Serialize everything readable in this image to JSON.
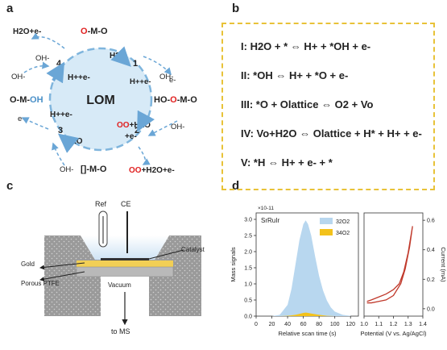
{
  "panel_labels": {
    "a": "a",
    "b": "b",
    "c": "c",
    "d": "d"
  },
  "colors": {
    "lom_circle_fill": "#d7eaf7",
    "lom_circle_stroke": "#7fb5dd",
    "oxygen_red": "#e02020",
    "oxygen_blue": "#4a90c8",
    "equation_box_border": "#e8c238",
    "o32_fill": "#b8d7ef",
    "o34_fill": "#f3c21b",
    "current_line": "#c0392b",
    "gold_layer": "#f2cf55",
    "vacuum_gray": "#9a9a9a"
  },
  "panel_a": {
    "center_label": "LOM",
    "top_species": [
      "O",
      "-M-O"
    ],
    "top_left_product": "H2O+e-",
    "left_species": [
      "O-M-",
      "OH"
    ],
    "right_species": "HO-O-M-O",
    "bottom_species": "[]-M-O",
    "bottom_right_product": [
      "O",
      "O",
      "+H2O+e-"
    ],
    "steps": [
      "1",
      "2",
      "3",
      "4"
    ],
    "step1_labels": [
      "H2O",
      "H++e-"
    ],
    "step2_labels": [
      "O",
      "O+H2O",
      "+e-"
    ],
    "step3_labels": [
      "H++e-",
      "H2O"
    ],
    "step4_labels": [
      "H++e-"
    ],
    "oh_labels": [
      "OH-",
      "OH-",
      "OH-",
      "OH-",
      "OH-"
    ],
    "e_labels": [
      "e-",
      "e-"
    ]
  },
  "panel_b": {
    "equations": [
      {
        "numeral": "I",
        "text": ": H2O + * ⇔ H+ + *OH + e-"
      },
      {
        "numeral": "II",
        "text": ": *OH ⇔ H+ + *O + e-"
      },
      {
        "numeral": "III",
        "text": ": *O + Olattice ⇔ O2 + Vo"
      },
      {
        "numeral": "IV",
        "text": ": Vo+H2O ⇔ Olattice + H* + H+ + e-"
      },
      {
        "numeral": "V",
        "text": ": *H ⇔ H+ + e- + *"
      }
    ]
  },
  "panel_c": {
    "labels": {
      "ref": "Ref",
      "ce": "CE",
      "catalyst": "Catalyst",
      "gold": "Gold",
      "porous_ptfe": "Porous PTFE",
      "vacuum": "Vacuum",
      "to_ms": "to MS"
    }
  },
  "chart_data": [
    {
      "type": "area",
      "sample_label": "SrRuIr",
      "scale_label": "×10-11",
      "ylabel": "Mass signals",
      "xlabel": "Relative scan time (s)",
      "xlim": [
        0,
        130
      ],
      "ylim": [
        0,
        3.2
      ],
      "xticks": [
        "0",
        "20",
        "40",
        "60",
        "80",
        "100",
        "120"
      ],
      "yticks": [
        "0.0",
        "0.5",
        "1.0",
        "1.5",
        "2.0",
        "2.5",
        "3.0"
      ],
      "legend": [
        "32O2",
        "34O2"
      ],
      "legend_placement": "top-right",
      "series": [
        {
          "name": "32O2",
          "x": [
            20,
            30,
            40,
            45,
            50,
            55,
            60,
            63,
            66,
            70,
            75,
            80,
            85,
            90,
            95,
            100,
            110,
            120
          ],
          "values": [
            0.0,
            0.04,
            0.35,
            0.85,
            1.6,
            2.35,
            2.85,
            2.97,
            2.85,
            2.5,
            1.85,
            1.25,
            0.8,
            0.48,
            0.27,
            0.14,
            0.04,
            0.01
          ]
        },
        {
          "name": "34O2",
          "x": [
            30,
            40,
            50,
            55,
            60,
            63,
            66,
            70,
            80,
            90,
            100
          ],
          "values": [
            0.0,
            0.01,
            0.04,
            0.07,
            0.1,
            0.11,
            0.1,
            0.08,
            0.04,
            0.01,
            0.0
          ]
        }
      ]
    },
    {
      "type": "line",
      "ylabel": "Current (mA)",
      "xlabel": "Potential (V vs. Ag/AgCl)",
      "xlim": [
        1.0,
        1.4
      ],
      "ylim": [
        -0.05,
        0.65
      ],
      "xticks": [
        "1.0",
        "1.1",
        "1.2",
        "1.3",
        "1.4"
      ],
      "yticks": [
        "0.0",
        "0.2",
        "0.4",
        "0.6"
      ],
      "series": [
        {
          "name": "",
          "x": [
            1.02,
            1.05,
            1.1,
            1.15,
            1.2,
            1.24,
            1.27,
            1.3,
            1.32,
            1.33,
            1.31,
            1.28,
            1.25,
            1.2,
            1.15,
            1.1,
            1.05,
            1.02
          ],
          "values": [
            0.05,
            0.06,
            0.08,
            0.1,
            0.13,
            0.17,
            0.25,
            0.38,
            0.5,
            0.56,
            0.42,
            0.27,
            0.17,
            0.09,
            0.06,
            0.05,
            0.04,
            0.04
          ]
        }
      ]
    }
  ]
}
